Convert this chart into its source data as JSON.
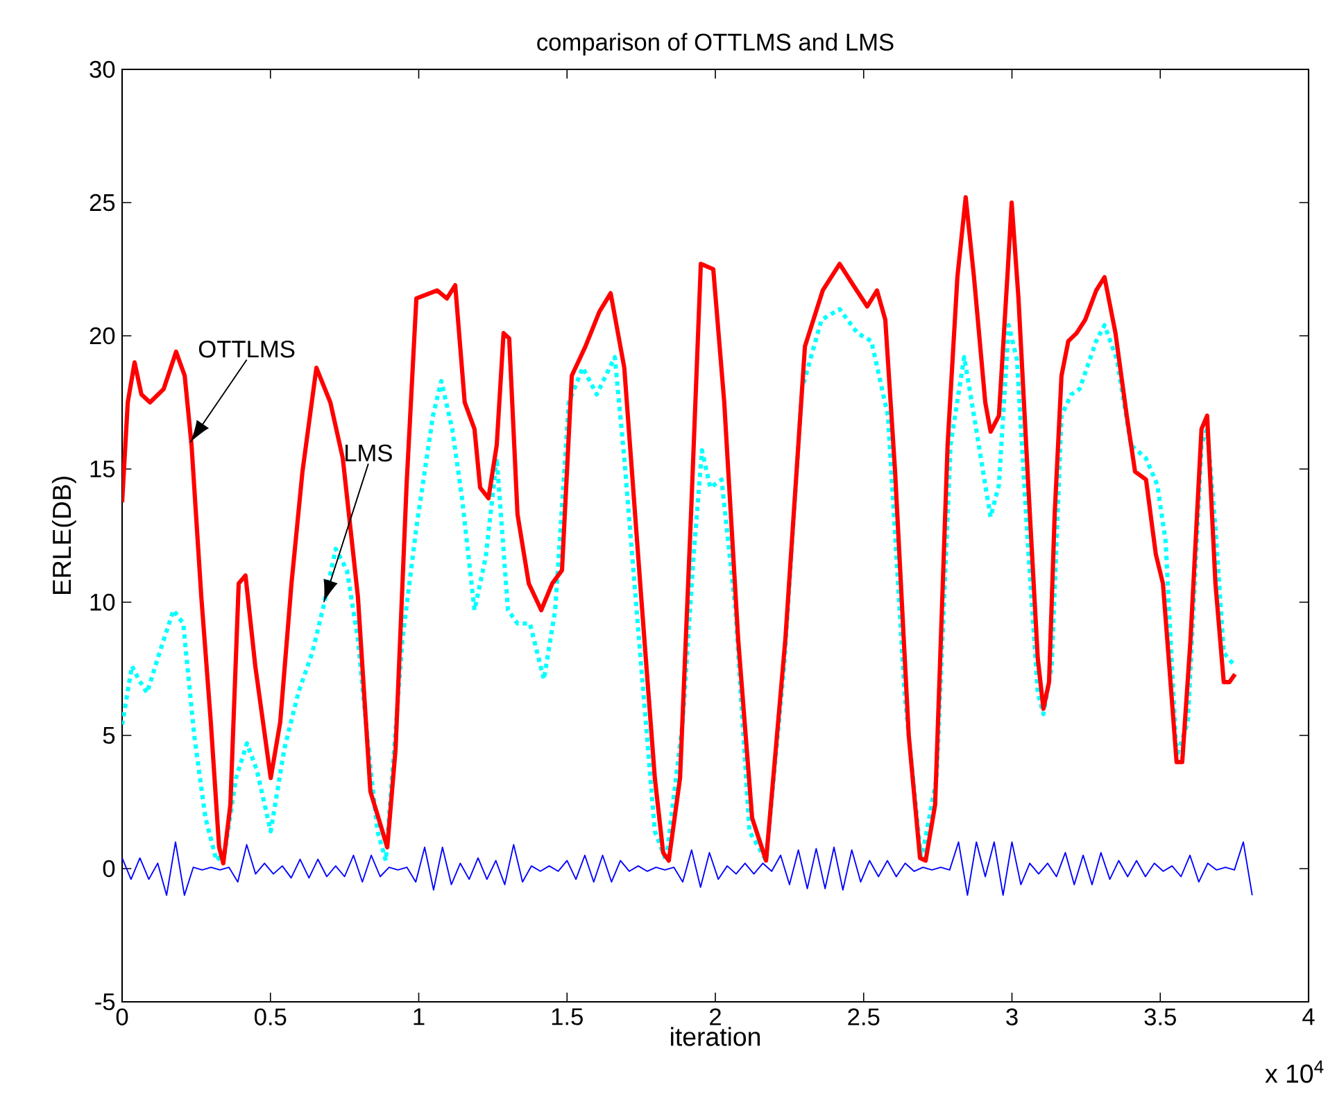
{
  "chart_data": {
    "type": "line",
    "title": "comparison of OTTLMS and LMS",
    "xlabel": "iteration",
    "ylabel": "ERLE(DB)",
    "xlim": [
      0,
      4
    ],
    "ylim": [
      -5,
      30
    ],
    "xticks": [
      0,
      0.5,
      1,
      1.5,
      2,
      2.5,
      3,
      3.5,
      4
    ],
    "yticks": [
      -5,
      0,
      5,
      10,
      15,
      20,
      25,
      30
    ],
    "grid": false,
    "annotations": [
      {
        "text": "OTTLMS",
        "x": 0.23,
        "y": 16
      },
      {
        "text": "LMS",
        "x": 0.68,
        "y": 10
      },
      "x 10$^{4}$"
    ],
    "series": [
      {
        "color": "#0000ff",
        "line_style": "solid",
        "x": [
          0,
          0.03,
          0.06,
          0.09,
          0.12,
          0.15,
          0.18,
          0.21,
          0.24,
          0.27,
          0.3,
          0.33,
          0.36,
          0.39,
          0.42,
          0.45,
          0.48,
          0.51,
          0.54,
          0.57,
          0.6,
          0.63,
          0.66,
          0.69,
          0.72,
          0.75,
          0.78,
          0.81,
          0.84,
          0.87,
          0.9,
          0.93,
          0.96,
          0.99,
          1.02,
          1.05,
          1.08,
          1.11,
          1.14,
          1.17,
          1.2,
          1.23,
          1.26,
          1.29,
          1.32,
          1.35,
          1.38,
          1.41,
          1.44,
          1.47,
          1.5,
          1.53,
          1.56,
          1.59,
          1.62,
          1.65,
          1.68,
          1.71,
          1.74,
          1.77,
          1.8,
          1.83,
          1.86,
          1.89,
          1.92,
          1.95,
          1.98,
          2.01,
          2.04,
          2.07,
          2.1,
          2.13,
          2.16,
          2.19,
          2.22,
          2.25,
          2.28,
          2.31,
          2.34,
          2.37,
          2.4,
          2.43,
          2.46,
          2.49,
          2.52,
          2.55,
          2.58,
          2.61,
          2.64,
          2.67,
          2.7,
          2.73,
          2.76,
          2.79,
          2.82,
          2.85,
          2.88,
          2.91,
          2.94,
          2.97,
          3.0,
          3.03,
          3.06,
          3.09,
          3.12,
          3.15,
          3.18,
          3.21,
          3.24,
          3.27,
          3.3,
          3.33,
          3.36,
          3.39,
          3.42,
          3.45,
          3.48,
          3.51,
          3.54,
          3.57,
          3.6,
          3.63,
          3.66,
          3.69,
          3.72,
          3.75,
          3.78,
          3.81
        ],
        "values": [
          0.4,
          -0.4,
          0.4,
          -0.4,
          0.2,
          -1.0,
          1.0,
          -1.0,
          0.05,
          -0.05,
          0.05,
          -0.05,
          0.05,
          -0.5,
          0.9,
          -0.2,
          0.2,
          -0.2,
          0.1,
          -0.35,
          0.35,
          -0.35,
          0.35,
          -0.3,
          0.1,
          -0.3,
          0.5,
          -0.5,
          0.5,
          -0.3,
          0.05,
          -0.05,
          0.05,
          -0.5,
          0.8,
          -0.8,
          0.8,
          -0.6,
          0.2,
          -0.4,
          0.4,
          -0.4,
          0.3,
          -0.6,
          0.9,
          -0.5,
          0.1,
          -0.1,
          0.1,
          -0.1,
          0.3,
          -0.4,
          0.5,
          -0.5,
          0.5,
          -0.5,
          0.3,
          -0.1,
          0.1,
          -0.1,
          0.05,
          -0.05,
          0.05,
          -0.5,
          0.7,
          -0.7,
          0.6,
          -0.4,
          0.1,
          -0.2,
          0.2,
          -0.2,
          0.2,
          -0.1,
          0.5,
          -0.6,
          0.7,
          -0.75,
          0.75,
          -0.75,
          0.8,
          -0.8,
          0.7,
          -0.5,
          0.3,
          -0.3,
          0.3,
          -0.3,
          0.2,
          -0.1,
          0.05,
          -0.05,
          0.05,
          -0.05,
          1.0,
          -1.0,
          1.0,
          -0.3,
          1.0,
          -1.0,
          1.0,
          -0.6,
          0.2,
          -0.2,
          0.2,
          -0.3,
          0.6,
          -0.6,
          0.5,
          -0.6,
          0.6,
          -0.4,
          0.3,
          -0.3,
          0.3,
          -0.3,
          0.2,
          -0.1,
          0.1,
          -0.3,
          0.5,
          -0.5,
          0.2,
          -0.05,
          0.05,
          -0.05,
          1.0,
          -1.0
        ]
      },
      {
        "color": "#00ffff",
        "line_style": "dotted",
        "x": [
          0,
          0.033,
          0.056,
          0.084,
          0.126,
          0.173,
          0.206,
          0.243,
          0.281,
          0.318,
          0.346,
          0.384,
          0.421,
          0.454,
          0.501,
          0.547,
          0.594,
          0.641,
          0.678,
          0.72,
          0.758,
          0.795,
          0.833,
          0.861,
          0.889,
          0.945,
          0.992,
          1.048,
          1.076,
          1.113,
          1.146,
          1.188,
          1.226,
          1.263,
          1.301,
          1.333,
          1.375,
          1.422,
          1.46,
          1.506,
          1.553,
          1.6,
          1.661,
          1.693,
          1.75,
          1.796,
          1.834,
          1.89,
          1.927,
          1.955,
          1.983,
          2.021,
          2.068,
          2.115,
          2.171,
          2.232,
          2.292,
          2.358,
          2.419,
          2.479,
          2.526,
          2.582,
          2.638,
          2.694,
          2.746,
          2.793,
          2.839,
          2.872,
          2.91,
          2.928,
          2.956,
          2.989,
          3.017,
          3.05,
          3.087,
          3.106,
          3.134,
          3.167,
          3.2,
          3.228,
          3.284,
          3.312,
          3.354,
          3.401,
          3.452,
          3.49,
          3.518,
          3.555,
          3.593,
          3.639,
          3.658,
          3.686,
          3.714,
          3.752
        ],
        "values": [
          5.4,
          7.6,
          7.1,
          6.6,
          8.1,
          9.7,
          9.2,
          5.0,
          1.9,
          0.3,
          0.6,
          3.4,
          4.7,
          3.7,
          1.4,
          4.5,
          6.6,
          8.1,
          9.8,
          12.0,
          11.2,
          8.6,
          4.2,
          1.4,
          0.3,
          8.6,
          12.8,
          17.0,
          18.3,
          16.5,
          13.9,
          9.7,
          11.7,
          15.4,
          9.7,
          9.2,
          9.2,
          7.1,
          9.7,
          17.5,
          18.8,
          17.8,
          19.2,
          15.4,
          7.6,
          1.4,
          0.3,
          5.5,
          11.8,
          15.7,
          14.3,
          14.6,
          9.7,
          1.4,
          0.3,
          7.6,
          18.0,
          20.6,
          21.0,
          20.1,
          19.8,
          17.0,
          6.6,
          0.3,
          3.4,
          15.9,
          19.2,
          17.0,
          14.4,
          13.2,
          14.4,
          20.4,
          19.1,
          12.8,
          6.6,
          5.8,
          7.6,
          17.0,
          17.8,
          18.0,
          19.8,
          20.4,
          19.1,
          15.9,
          15.4,
          14.4,
          12.3,
          4.2,
          5.5,
          15.9,
          16.5,
          12.8,
          8.1,
          7.6
        ]
      },
      {
        "color": "#ff0000",
        "line_style": "solid",
        "x": [
          0,
          0.019,
          0.042,
          0.065,
          0.094,
          0.14,
          0.182,
          0.211,
          0.234,
          0.267,
          0.299,
          0.327,
          0.341,
          0.365,
          0.393,
          0.416,
          0.449,
          0.501,
          0.533,
          0.571,
          0.608,
          0.655,
          0.702,
          0.744,
          0.795,
          0.837,
          0.894,
          0.922,
          0.959,
          0.992,
          1.062,
          1.095,
          1.123,
          1.155,
          1.188,
          1.207,
          1.235,
          1.263,
          1.286,
          1.305,
          1.333,
          1.371,
          1.413,
          1.45,
          1.483,
          1.516,
          1.562,
          1.609,
          1.647,
          1.693,
          1.75,
          1.796,
          1.824,
          1.843,
          1.881,
          1.918,
          1.951,
          1.993,
          2.03,
          2.077,
          2.124,
          2.171,
          2.236,
          2.302,
          2.362,
          2.419,
          2.465,
          2.512,
          2.545,
          2.573,
          2.606,
          2.652,
          2.69,
          2.709,
          2.741,
          2.783,
          2.816,
          2.844,
          2.872,
          2.91,
          2.928,
          2.956,
          2.985,
          2.999,
          3.022,
          3.055,
          3.087,
          3.106,
          3.125,
          3.144,
          3.167,
          3.19,
          3.218,
          3.247,
          3.284,
          3.312,
          3.349,
          3.387,
          3.415,
          3.452,
          3.485,
          3.509,
          3.527,
          3.555,
          3.574,
          3.602,
          3.639,
          3.658,
          3.686,
          3.714,
          3.733,
          3.752
        ],
        "values": [
          13.75,
          17.5,
          19.0,
          17.8,
          17.5,
          18.0,
          19.4,
          18.5,
          15.9,
          10.2,
          5.5,
          0.8,
          0.2,
          2.4,
          10.7,
          11.0,
          7.6,
          3.4,
          5.5,
          10.7,
          14.9,
          18.8,
          17.5,
          15.4,
          10.2,
          2.9,
          0.8,
          4.5,
          14.4,
          21.4,
          21.7,
          21.4,
          21.9,
          17.5,
          16.5,
          14.3,
          13.9,
          15.9,
          20.1,
          19.9,
          13.3,
          10.7,
          9.7,
          10.7,
          11.2,
          18.5,
          19.6,
          20.9,
          21.6,
          18.8,
          10.2,
          3.4,
          0.6,
          0.3,
          3.4,
          13.3,
          22.7,
          22.5,
          17.5,
          8.6,
          1.9,
          0.3,
          8.6,
          19.6,
          21.7,
          22.7,
          21.9,
          21.1,
          21.7,
          20.6,
          14.9,
          5.0,
          0.4,
          0.3,
          2.4,
          15.9,
          22.2,
          25.2,
          22.2,
          17.5,
          16.4,
          17.0,
          22.3,
          25.0,
          21.4,
          14.4,
          7.9,
          6.0,
          7.0,
          13.3,
          18.5,
          19.8,
          20.1,
          20.6,
          21.7,
          22.2,
          20.1,
          17.0,
          14.9,
          14.6,
          11.8,
          10.7,
          8.1,
          4.0,
          4.0,
          8.6,
          16.5,
          17.0,
          10.7,
          7.0,
          7.0,
          7.3
        ]
      }
    ]
  }
}
